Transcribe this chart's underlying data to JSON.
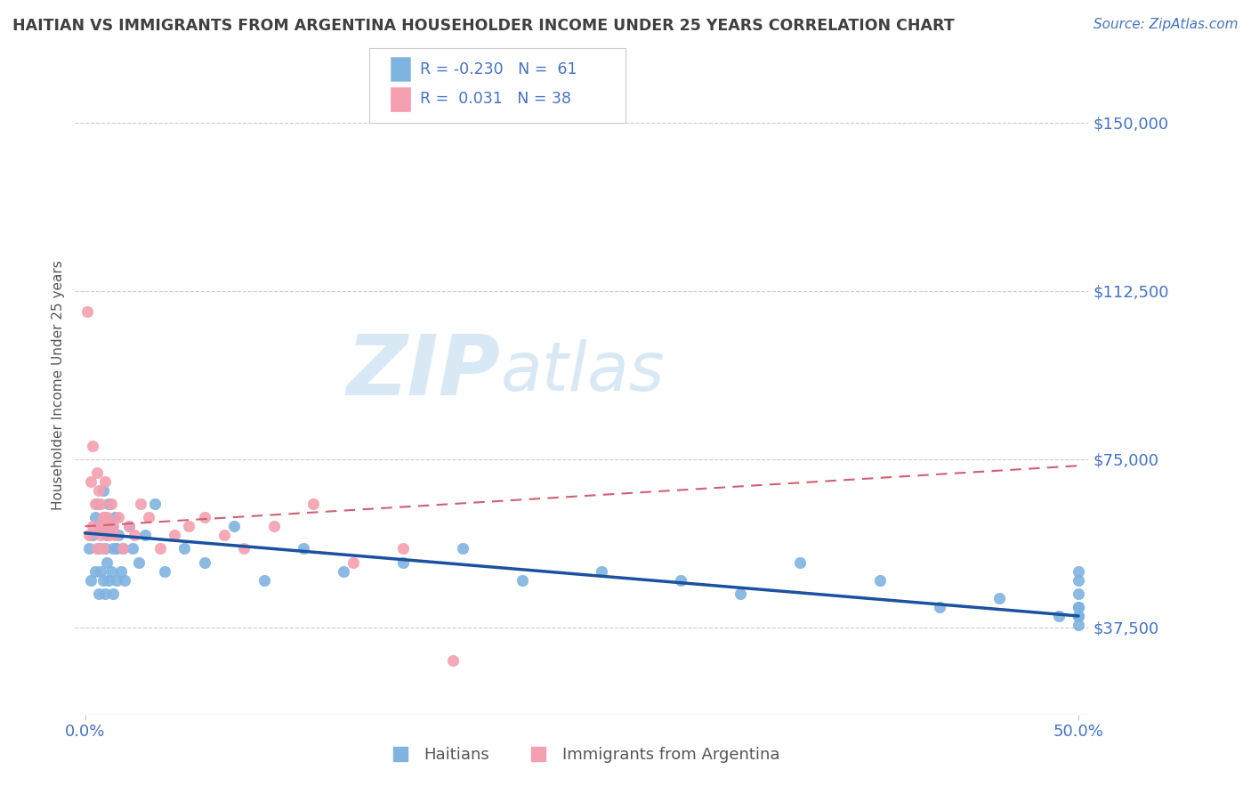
{
  "title": "HAITIAN VS IMMIGRANTS FROM ARGENTINA HOUSEHOLDER INCOME UNDER 25 YEARS CORRELATION CHART",
  "source": "Source: ZipAtlas.com",
  "ylabel": "Householder Income Under 25 years",
  "ytick_labels": [
    "$37,500",
    "$75,000",
    "$112,500",
    "$150,000"
  ],
  "ytick_values": [
    37500,
    75000,
    112500,
    150000
  ],
  "ylim": [
    18000,
    165000
  ],
  "xlim": [
    -0.005,
    0.505
  ],
  "blue_color": "#7FB3E0",
  "pink_color": "#F4A0B0",
  "blue_line_color": "#1A52A0",
  "pink_line_color": "#D06070",
  "title_color": "#404040",
  "axis_label_color": "#4472C4",
  "grid_color": "#CCCCCC",
  "watermark_zip": "ZIP",
  "watermark_atlas": "atlas",
  "watermark_color": "#D8E8F4",
  "haitians_x": [
    0.002,
    0.003,
    0.004,
    0.005,
    0.005,
    0.006,
    0.007,
    0.007,
    0.008,
    0.008,
    0.009,
    0.009,
    0.01,
    0.01,
    0.01,
    0.011,
    0.011,
    0.012,
    0.012,
    0.013,
    0.013,
    0.014,
    0.014,
    0.015,
    0.016,
    0.016,
    0.017,
    0.018,
    0.019,
    0.02,
    0.022,
    0.024,
    0.027,
    0.03,
    0.035,
    0.04,
    0.05,
    0.06,
    0.075,
    0.09,
    0.11,
    0.13,
    0.16,
    0.19,
    0.22,
    0.26,
    0.3,
    0.33,
    0.36,
    0.4,
    0.43,
    0.46,
    0.49,
    0.5,
    0.5,
    0.5,
    0.5,
    0.5,
    0.5,
    0.5,
    0.5
  ],
  "haitians_y": [
    55000,
    48000,
    58000,
    62000,
    50000,
    65000,
    55000,
    45000,
    60000,
    50000,
    68000,
    48000,
    55000,
    62000,
    45000,
    58000,
    52000,
    65000,
    48000,
    60000,
    50000,
    55000,
    45000,
    62000,
    55000,
    48000,
    58000,
    50000,
    55000,
    48000,
    60000,
    55000,
    52000,
    58000,
    65000,
    50000,
    55000,
    52000,
    60000,
    48000,
    55000,
    50000,
    52000,
    55000,
    48000,
    50000,
    48000,
    45000,
    52000,
    48000,
    42000,
    44000,
    40000,
    50000,
    48000,
    45000,
    42000,
    40000,
    38000,
    42000,
    40000
  ],
  "argentina_x": [
    0.001,
    0.002,
    0.003,
    0.004,
    0.004,
    0.005,
    0.006,
    0.006,
    0.007,
    0.007,
    0.008,
    0.008,
    0.009,
    0.009,
    0.01,
    0.01,
    0.011,
    0.012,
    0.013,
    0.014,
    0.015,
    0.017,
    0.019,
    0.022,
    0.025,
    0.028,
    0.032,
    0.038,
    0.045,
    0.052,
    0.06,
    0.07,
    0.08,
    0.095,
    0.115,
    0.135,
    0.16,
    0.185
  ],
  "argentina_y": [
    108000,
    58000,
    70000,
    60000,
    78000,
    65000,
    72000,
    55000,
    68000,
    60000,
    58000,
    65000,
    62000,
    55000,
    70000,
    60000,
    62000,
    58000,
    65000,
    60000,
    58000,
    62000,
    55000,
    60000,
    58000,
    65000,
    62000,
    55000,
    58000,
    60000,
    62000,
    58000,
    55000,
    60000,
    65000,
    52000,
    55000,
    30000
  ],
  "blue_line_x0": 0.0,
  "blue_line_y0": 58500,
  "blue_line_x1": 0.5,
  "blue_line_y1": 40000,
  "pink_line_x0": 0.0,
  "pink_line_y0": 60000,
  "pink_line_x1": 0.185,
  "pink_line_y1": 65000
}
